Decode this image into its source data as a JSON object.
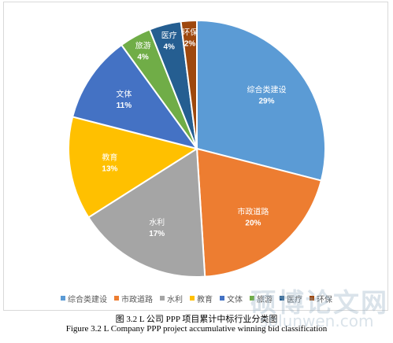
{
  "chart_data": {
    "type": "pie",
    "slices": [
      {
        "label": "综合类建设",
        "percent_label": "29%",
        "value": 29,
        "color": "#5b9bd5"
      },
      {
        "label": "市政道路",
        "percent_label": "20%",
        "value": 20,
        "color": "#ed7d31"
      },
      {
        "label": "水利",
        "percent_label": "17%",
        "value": 17,
        "color": "#a5a5a5"
      },
      {
        "label": "教育",
        "percent_label": "13%",
        "value": 13,
        "color": "#ffc000"
      },
      {
        "label": "文体",
        "percent_label": "11%",
        "value": 11,
        "color": "#4472c4"
      },
      {
        "label": "旅游",
        "percent_label": "4%",
        "value": 4,
        "color": "#70ad47"
      },
      {
        "label": "医疗",
        "percent_label": "4%",
        "value": 4,
        "color": "#255e91"
      },
      {
        "label": "环保",
        "percent_label": "2%",
        "value": 2,
        "color": "#9e480e"
      }
    ],
    "legend_position": "bottom"
  },
  "caption": {
    "cn": "图 3.2    L 公司 PPP 项目累计中标行业分类图",
    "en": "Figure 3.2 L Company PPP project accumulative winning bid classification"
  },
  "watermark": {
    "text": "硕博论文网",
    "url": "sblunwen.com"
  }
}
